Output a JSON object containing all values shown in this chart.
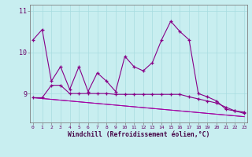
{
  "xlabel": "Windchill (Refroidissement éolien,°C)",
  "x": [
    0,
    1,
    2,
    3,
    4,
    5,
    6,
    7,
    8,
    9,
    10,
    11,
    12,
    13,
    14,
    15,
    16,
    17,
    18,
    19,
    20,
    21,
    22,
    23
  ],
  "series1": [
    10.3,
    10.55,
    9.3,
    9.65,
    9.1,
    9.65,
    9.05,
    9.5,
    9.3,
    9.05,
    9.9,
    9.65,
    9.55,
    9.75,
    10.3,
    10.75,
    10.5,
    10.3,
    9.0,
    8.92,
    8.82,
    8.62,
    8.58,
    8.55
  ],
  "series2": [
    8.9,
    8.9,
    9.2,
    9.2,
    9.0,
    9.0,
    9.0,
    9.0,
    9.0,
    8.98,
    8.98,
    8.98,
    8.98,
    8.98,
    8.98,
    8.98,
    8.98,
    8.92,
    8.87,
    8.82,
    8.77,
    8.67,
    8.58,
    8.52
  ],
  "series3": [
    8.9,
    8.88,
    8.86,
    8.84,
    8.82,
    8.8,
    8.78,
    8.76,
    8.74,
    8.72,
    8.7,
    8.68,
    8.66,
    8.64,
    8.62,
    8.6,
    8.58,
    8.56,
    8.54,
    8.52,
    8.5,
    8.48,
    8.46,
    8.44
  ],
  "series4": [
    8.9,
    8.88,
    8.86,
    8.84,
    8.82,
    8.8,
    8.78,
    8.76,
    8.74,
    8.72,
    8.7,
    8.68,
    8.66,
    8.64,
    8.62,
    8.6,
    8.58,
    8.56,
    8.54,
    8.52,
    8.5,
    8.48,
    8.46,
    8.44
  ],
  "line_color": "#880088",
  "line_color2": "#aa00aa",
  "bg_color": "#c8eef0",
  "grid_color": "#a8dce0",
  "ylim_min": 8.3,
  "ylim_max": 11.15,
  "yticks": [
    9,
    10,
    11
  ]
}
